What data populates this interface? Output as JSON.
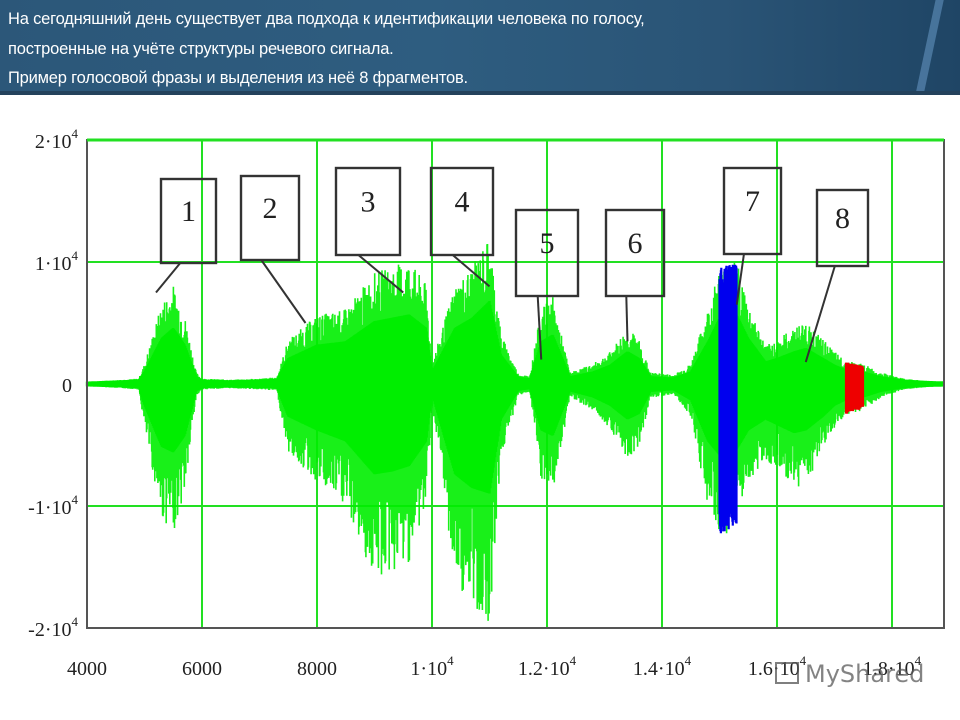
{
  "slide": {
    "title_lines": [
      "На сегодняшний день существует два подхода к идентификации человека по голосу,",
      "построенные на учёте структуры речевого сигнала.",
      "Пример голосовой фразы и выделения из неё 8 фрагментов."
    ],
    "watermark": "MyShared"
  },
  "colors": {
    "header_bg": "#2c5779",
    "grid": "#22e022",
    "signal": "#00ee00",
    "fragment_7": "#0000ee",
    "fragment_8": "#ee0000",
    "frame": "#555555",
    "label_box": "#333333"
  },
  "chart_data": {
    "type": "line",
    "title": "Пример голосовой фразы и выделения из неё 8 фрагментов",
    "xlabel": "",
    "ylabel": "",
    "xlim": [
      4000,
      19000
    ],
    "ylim": [
      -20000,
      20000
    ],
    "grid": true,
    "x_ticks": [
      4000,
      6000,
      8000,
      10000,
      12000,
      14000,
      16000,
      18000
    ],
    "x_tick_labels": [
      "4000",
      "6000",
      "8000",
      "1·10^4",
      "1.2·10^4",
      "1.4·10^4",
      "1.6·10^4",
      "1.8·10^4"
    ],
    "y_ticks": [
      20000,
      10000,
      0,
      -10000,
      -20000
    ],
    "y_tick_labels": [
      "2·10^4",
      "1·10^4",
      "0",
      "-1·10^4",
      "-2·10^4"
    ],
    "envelope": {
      "description": "Approximate amplitude envelope of the speech waveform (upper / lower peaks)",
      "x": [
        4000,
        4900,
        5000,
        5300,
        5500,
        5700,
        5900,
        6000,
        6500,
        7000,
        7300,
        7500,
        8000,
        8500,
        9000,
        9300,
        9600,
        9900,
        10000,
        10400,
        10700,
        11000,
        11200,
        11500,
        11700,
        11900,
        12100,
        12400,
        12800,
        13100,
        13400,
        13600,
        13800,
        14200,
        14500,
        14800,
        15000,
        15300,
        15500,
        15800,
        16000,
        16300,
        16500,
        16800,
        17000,
        17200,
        17500,
        17800,
        18200,
        18600,
        19000
      ],
      "upper": [
        0,
        300,
        1500,
        6500,
        8000,
        5500,
        800,
        300,
        200,
        300,
        400,
        3500,
        5500,
        6000,
        9000,
        9500,
        10000,
        8000,
        1500,
        8000,
        9500,
        12000,
        4000,
        700,
        500,
        6000,
        7000,
        800,
        1500,
        2500,
        4500,
        3500,
        800,
        600,
        1500,
        6000,
        9500,
        10000,
        6500,
        3000,
        3500,
        4500,
        5000,
        3500,
        2500,
        1800,
        1500,
        800,
        300,
        100,
        0
      ],
      "lower": [
        0,
        -300,
        -3500,
        -11000,
        -12000,
        -9000,
        -900,
        -300,
        -200,
        -300,
        -400,
        -5500,
        -8000,
        -10000,
        -16000,
        -15500,
        -14500,
        -10000,
        -1500,
        -16000,
        -18500,
        -19500,
        -6000,
        -800,
        -500,
        -8000,
        -9000,
        -900,
        -2000,
        -3500,
        -6000,
        -5000,
        -1000,
        -700,
        -2500,
        -10000,
        -12500,
        -11500,
        -8000,
        -6000,
        -7000,
        -8500,
        -8000,
        -5500,
        -3500,
        -2500,
        -2000,
        -1000,
        -300,
        -100,
        0
      ]
    },
    "fragments": [
      {
        "label": "1",
        "x_point": 5200,
        "y_point": 7500,
        "color": "#00ee00"
      },
      {
        "label": "2",
        "x_point": 7800,
        "y_point": 5000,
        "color": "#00ee00"
      },
      {
        "label": "3",
        "x_point": 9500,
        "y_point": 7500,
        "color": "#00ee00"
      },
      {
        "label": "4",
        "x_point": 11000,
        "y_point": 8000,
        "color": "#00ee00"
      },
      {
        "label": "5",
        "x_point": 11900,
        "y_point": 2000,
        "color": "#00ee00"
      },
      {
        "label": "6",
        "x_point": 13400,
        "y_point": 3500,
        "color": "#00ee00"
      },
      {
        "label": "7",
        "x_point": 15300,
        "y_point": 6500,
        "color": "#0000ee",
        "highlight_x": [
          15000,
          15300
        ]
      },
      {
        "label": "8",
        "x_point": 16500,
        "y_point": 1800,
        "color": "#ee0000",
        "highlight_x": [
          17200,
          17500
        ]
      }
    ]
  }
}
